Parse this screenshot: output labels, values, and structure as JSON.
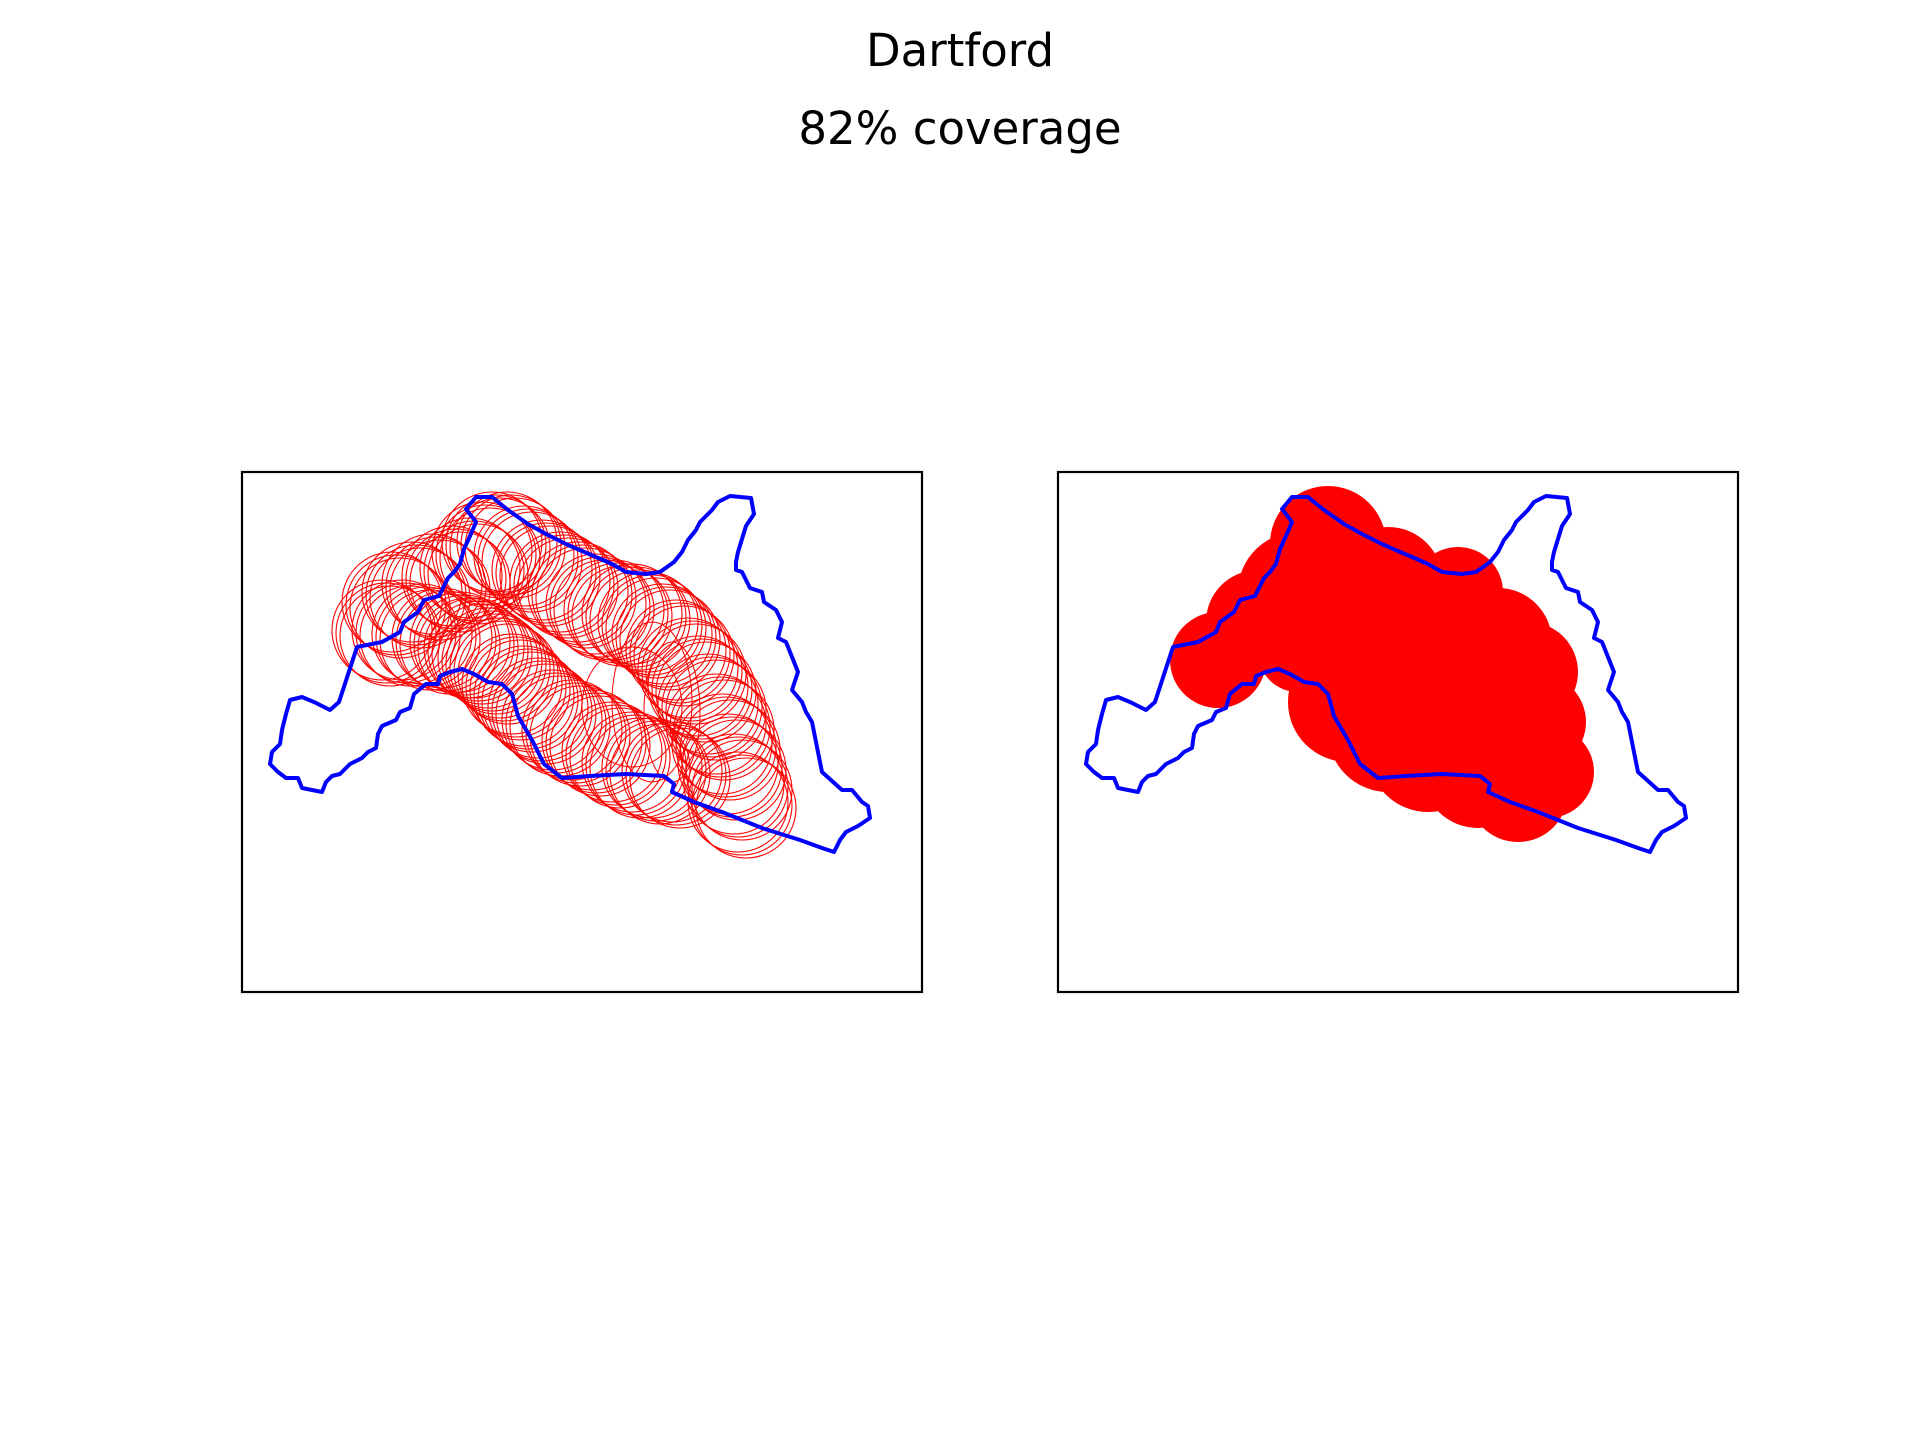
{
  "figure": {
    "title": "Dartford",
    "subtitle": "82% coverage"
  },
  "colors": {
    "boundary": "#0000ff",
    "coverage": "#ff0000",
    "frame": "#000000",
    "background": "#ffffff"
  },
  "panels": [
    {
      "name": "circle-outlines-panel",
      "style": "outline"
    },
    {
      "name": "filled-coverage-panel",
      "style": "filled"
    }
  ]
}
